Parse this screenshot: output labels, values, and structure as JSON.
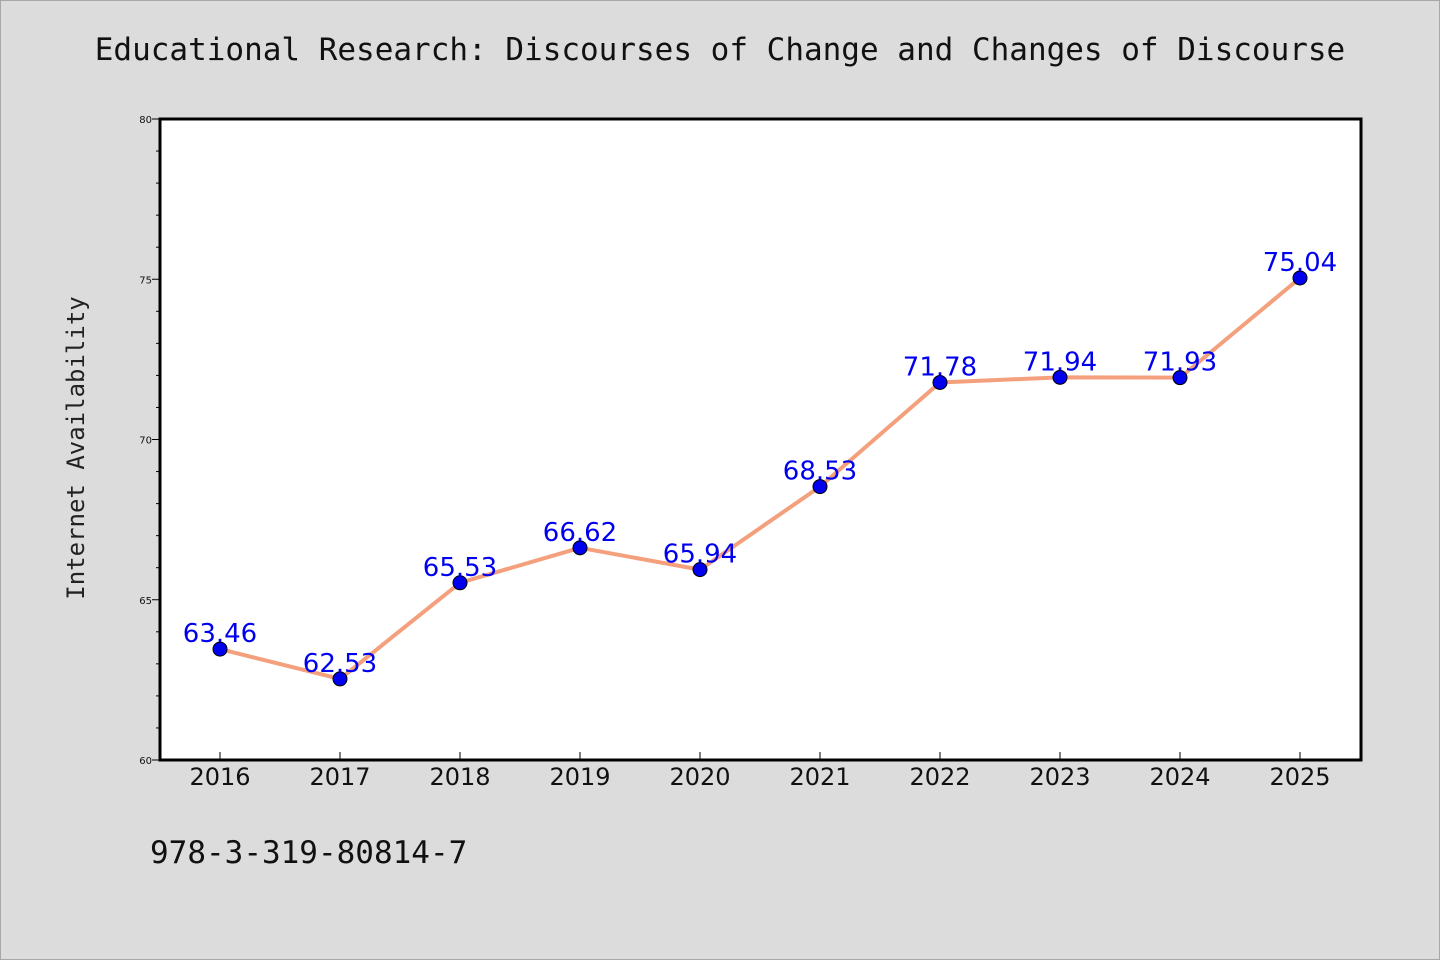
{
  "chart_data": {
    "type": "line",
    "title": "Educational Research: Discourses of Change and Changes of Discourse",
    "ylabel": "Internet Availability",
    "xlabel": "",
    "x": [
      "2016",
      "2017",
      "2018",
      "2019",
      "2020",
      "2021",
      "2022",
      "2023",
      "2024",
      "2025"
    ],
    "series": [
      {
        "values": [
          63.46,
          62.53,
          65.53,
          66.62,
          65.94,
          68.53,
          71.78,
          71.94,
          71.93,
          75.04
        ],
        "labels": [
          "63.46",
          "62.53",
          "65.53",
          "66.62",
          "65.94",
          "68.53",
          "71.78",
          "71.94",
          "71.93",
          "75.04"
        ]
      }
    ],
    "ylim": [
      60,
      80
    ],
    "yticks": [
      "60",
      "65",
      "70",
      "75",
      "80"
    ],
    "grid": false,
    "legend": "none"
  },
  "footer": {
    "isbn": "978-3-319-80814-7"
  },
  "colors": {
    "line": "#f4a07d",
    "marker": "#0000ee",
    "data_label": "#0000ee",
    "background": "#dcdcdc",
    "plot_background": "#ffffff"
  }
}
